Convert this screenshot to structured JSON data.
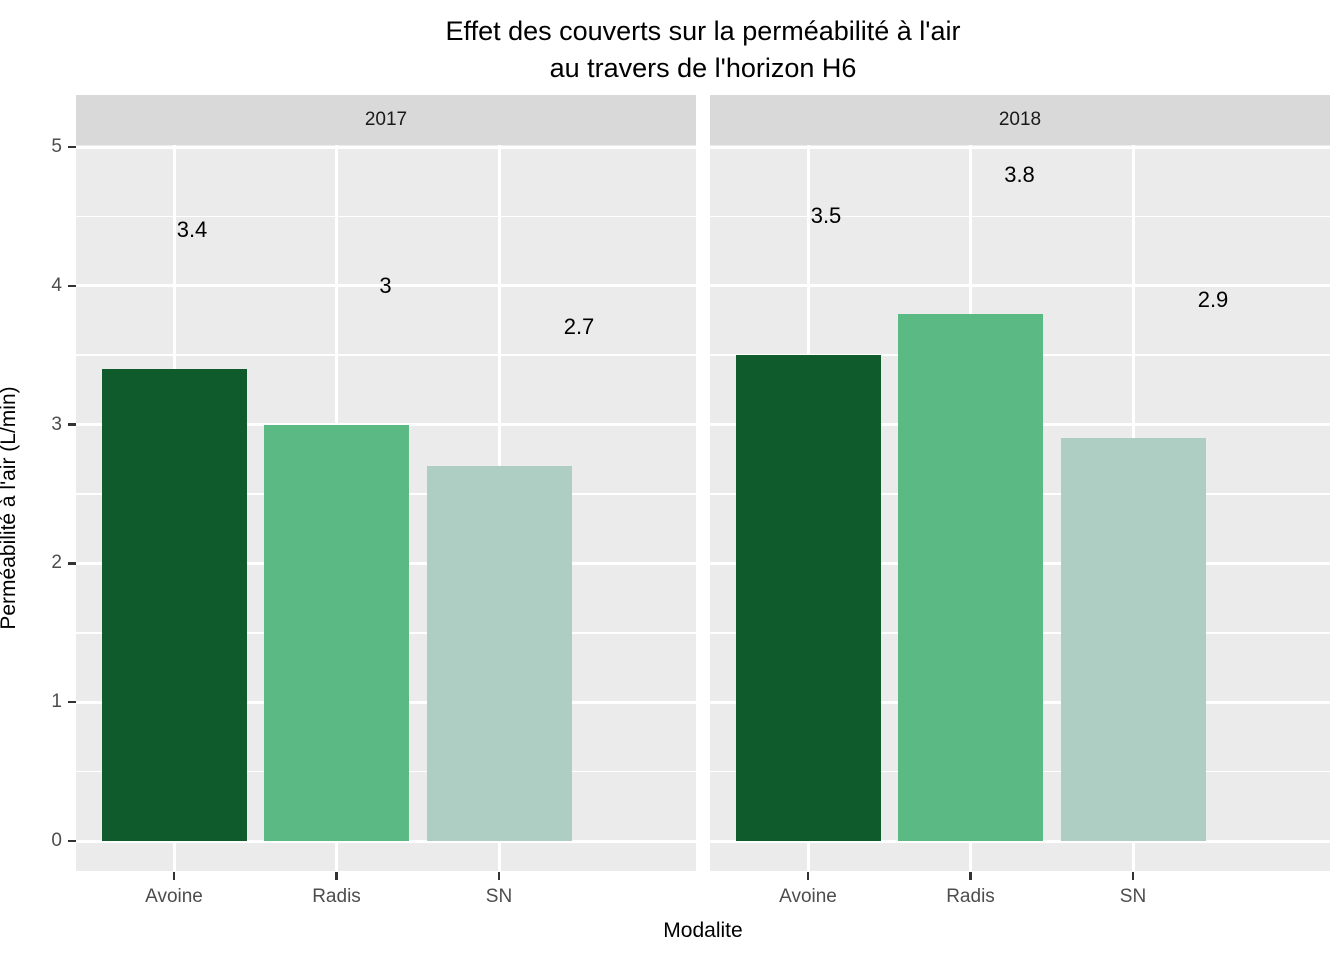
{
  "chart_data": {
    "type": "bar",
    "title_lines": [
      "Effet des couverts sur la perméabilité à l'air",
      "au travers de l'horizon H6"
    ],
    "xlabel": "Modalite",
    "ylabel": "Perméabilité à l'air (L/min)",
    "categories": [
      "Avoine",
      "Radis",
      "SN"
    ],
    "facets": [
      {
        "label": "2017",
        "values": [
          3.4,
          3,
          2.7
        ],
        "value_labels": [
          "3.4",
          "3",
          "2.7"
        ]
      },
      {
        "label": "2018",
        "values": [
          3.5,
          3.8,
          2.9
        ],
        "value_labels": [
          "3.5",
          "3.8",
          "2.9"
        ]
      }
    ],
    "y_ticks": [
      "0",
      "1",
      "2",
      "3",
      "4",
      "5"
    ],
    "ylim": [
      0,
      5
    ],
    "grid": true,
    "legend": "none",
    "colors": {
      "Avoine": "#0F5B2B",
      "Radis": "#5BBA84",
      "SN": "#AECEC3"
    },
    "panel_bg": "#EBEBEB",
    "strip_bg": "#D9D9D9",
    "grid_color": "#FFFFFF",
    "axis_text_color": "#4D4D4D",
    "tick_color": "#333333"
  }
}
